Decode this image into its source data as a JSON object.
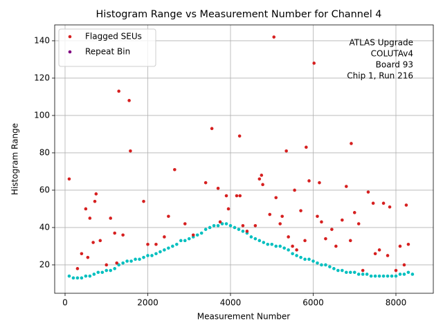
{
  "chart_data": {
    "type": "scatter",
    "title": "Histogram Range vs Measurement Number for Channel 4",
    "xlabel": "Measurement Number",
    "ylabel": "Histogram Range",
    "annotation": [
      "ATLAS Upgrade",
      "COLUTAv4",
      "Board 93",
      "Chip 1, Run 216"
    ],
    "xlim": [
      -251,
      8904
    ],
    "ylim": [
      4.8,
      148.5
    ],
    "xticks": [
      0,
      2000,
      4000,
      6000,
      8000
    ],
    "yticks": [
      20,
      40,
      60,
      80,
      100,
      120,
      140
    ],
    "grid": true,
    "legend": "upper left",
    "series": [
      {
        "color": "#00bfbf",
        "x": [
          100,
          200,
          300,
          400,
          500,
          600,
          700,
          800,
          900,
          1000,
          1100,
          1200,
          1300,
          1400,
          1500,
          1600,
          1700,
          1800,
          1900,
          2000,
          2100,
          2200,
          2300,
          2400,
          2500,
          2600,
          2700,
          2800,
          2900,
          3000,
          3100,
          3200,
          3300,
          3400,
          3500,
          3600,
          3700,
          3800,
          3900,
          4000,
          4100,
          4200,
          4300,
          4400,
          4500,
          4600,
          4700,
          4800,
          4900,
          5000,
          5100,
          5200,
          5300,
          5400,
          5500,
          5600,
          5700,
          5800,
          5900,
          6000,
          6100,
          6200,
          6300,
          6400,
          6500,
          6600,
          6700,
          6800,
          6900,
          7000,
          7100,
          7200,
          7300,
          7400,
          7500,
          7600,
          7700,
          7800,
          7900,
          8000,
          8100,
          8200,
          8300,
          8400
        ],
        "values": [
          14,
          13,
          13,
          13,
          14,
          14,
          15,
          16,
          16,
          17,
          17,
          18,
          20,
          21,
          22,
          22,
          23,
          23,
          24,
          25,
          25,
          26,
          27,
          28,
          29,
          30,
          31,
          33,
          33,
          34,
          35,
          36,
          37,
          39,
          40,
          41,
          41,
          42,
          42,
          41,
          40,
          39,
          38,
          37,
          35,
          34,
          33,
          32,
          31,
          31,
          30,
          30,
          29,
          28,
          26,
          25,
          24,
          23,
          23,
          22,
          21,
          20,
          20,
          19,
          18,
          17,
          17,
          16,
          16,
          16,
          15,
          15,
          15,
          14,
          14,
          14,
          14,
          14,
          14,
          14,
          15,
          15,
          16,
          15
        ]
      },
      {
        "name": "Flagged SEUs",
        "color": "#d62020",
        "x": [
          100,
          1300,
          1550,
          1580,
          1900,
          2650,
          3400,
          3550,
          3700,
          3750,
          3900,
          3950,
          4150,
          4220,
          4230,
          4700,
          4750,
          4780,
          5050,
          5100,
          5250,
          5350,
          5550,
          5700,
          5830,
          5900,
          6020,
          6150,
          6200,
          6450,
          6800,
          6920,
          7100,
          7330,
          7450,
          7700,
          7850,
          8250,
          8100,
          7000,
          6700,
          6100,
          5200,
          4950,
          750,
          720,
          500,
          600,
          1100,
          1200,
          1400,
          2500,
          2900,
          300,
          400,
          550,
          850,
          1000,
          1250,
          2000,
          2200,
          2400,
          3100,
          4300,
          4600,
          5400,
          5600,
          5800,
          6300,
          6550,
          6900,
          7200,
          7500,
          7600,
          7800,
          8000,
          8200,
          8300,
          680,
          4400,
          5500
        ],
        "values": [
          66,
          113,
          108,
          81,
          54,
          71,
          64,
          93,
          61,
          43,
          57,
          50,
          57,
          89,
          57,
          66,
          68,
          63,
          142,
          56,
          46,
          81,
          60,
          49,
          83,
          65,
          128,
          64,
          43,
          39,
          62,
          85,
          42,
          59,
          53,
          53,
          51,
          52,
          30,
          48,
          44,
          46,
          42,
          47,
          58,
          54,
          50,
          45,
          45,
          37,
          36,
          46,
          42,
          18,
          26,
          24,
          33,
          20,
          21,
          31,
          31,
          35,
          36,
          41,
          41,
          35,
          28,
          33,
          34,
          30,
          33,
          17,
          26,
          28,
          25,
          17,
          20,
          31,
          32,
          38,
          30
        ]
      },
      {
        "name": "Repeat Bin",
        "color": "#800080",
        "x": [],
        "values": []
      }
    ]
  }
}
